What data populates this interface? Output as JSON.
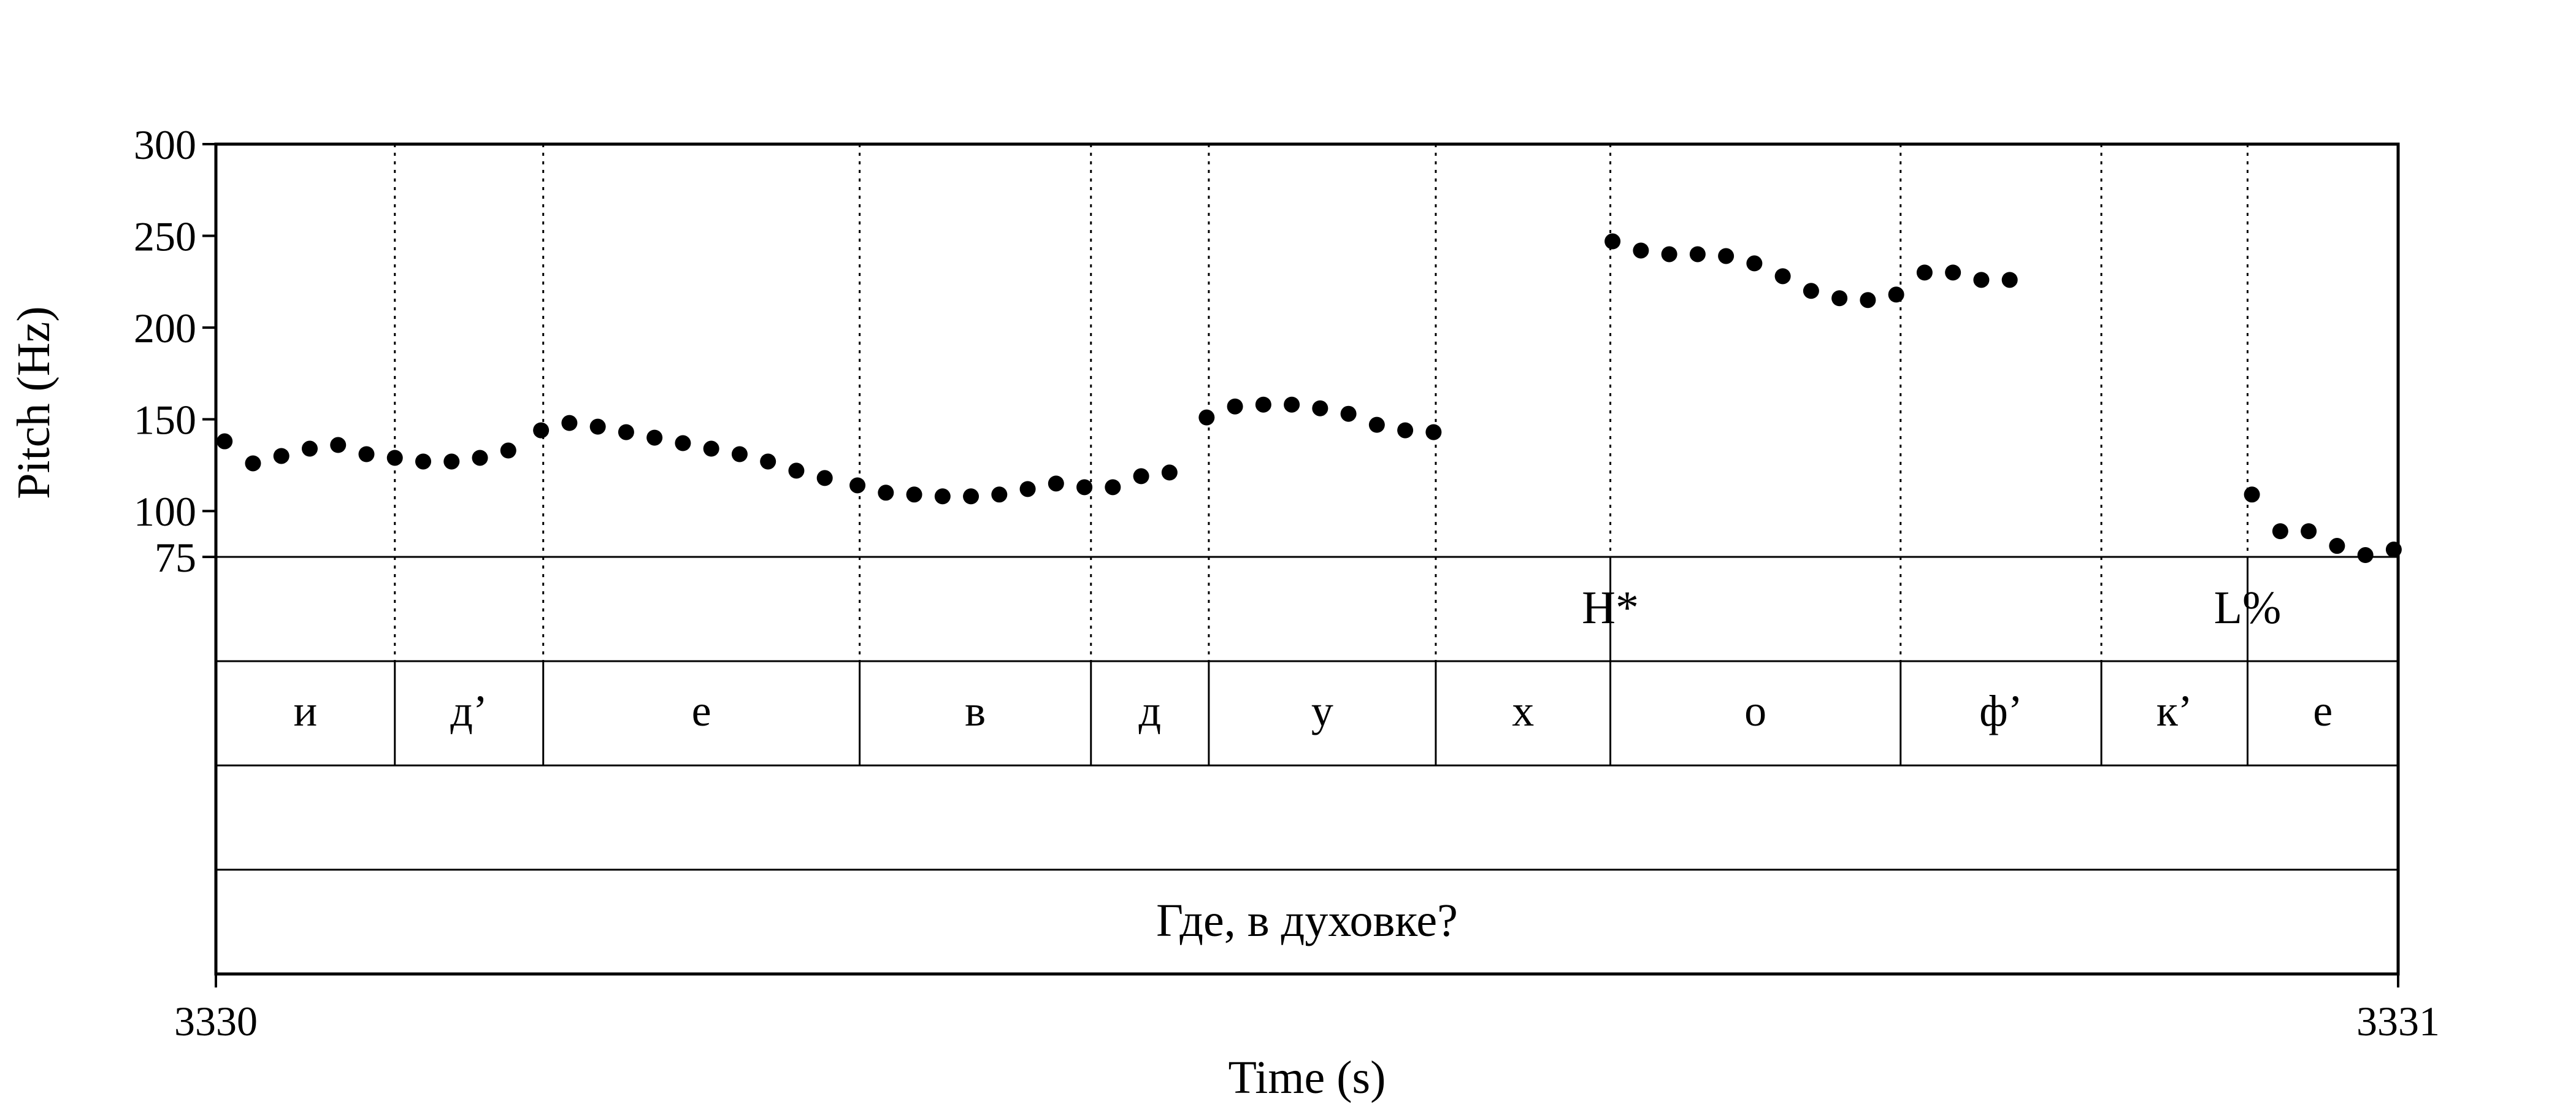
{
  "chart_data": {
    "type": "scatter",
    "xlabel": "Time (s)",
    "ylabel": "Pitch (Hz)",
    "xlim": [
      3330,
      3331
    ],
    "ylim": [
      75,
      300
    ],
    "x_tick_labels": [
      "3330",
      "3331"
    ],
    "y_ticks": [
      75,
      100,
      150,
      200,
      250,
      300
    ],
    "y_tick_labels": [
      "75",
      "100",
      "150",
      "200",
      "250",
      "300"
    ],
    "boundaries": [
      3330.082,
      3330.15,
      3330.295,
      3330.401,
      3330.455,
      3330.559,
      3330.639,
      3330.772,
      3330.864,
      3330.931
    ],
    "tones": [
      {
        "label": "H*",
        "time": 3330.639
      },
      {
        "label": "L%",
        "time": 3330.931
      }
    ],
    "segments": [
      {
        "label": "и",
        "start": 3330.0,
        "end": 3330.082
      },
      {
        "label": "д’",
        "start": 3330.082,
        "end": 3330.15
      },
      {
        "label": "е",
        "start": 3330.15,
        "end": 3330.295
      },
      {
        "label": "в",
        "start": 3330.295,
        "end": 3330.401
      },
      {
        "label": "д",
        "start": 3330.401,
        "end": 3330.455
      },
      {
        "label": "у",
        "start": 3330.455,
        "end": 3330.559
      },
      {
        "label": "х",
        "start": 3330.559,
        "end": 3330.639
      },
      {
        "label": "о",
        "start": 3330.639,
        "end": 3330.772
      },
      {
        "label": "ф’",
        "start": 3330.772,
        "end": 3330.864
      },
      {
        "label": "к’",
        "start": 3330.864,
        "end": 3330.931
      },
      {
        "label": "е",
        "start": 3330.931,
        "end": 3331.0
      }
    ],
    "phrase": "Где, в духовке?",
    "pitch_points": [
      [
        3330.004,
        138
      ],
      [
        3330.017,
        126
      ],
      [
        3330.03,
        130
      ],
      [
        3330.043,
        134
      ],
      [
        3330.056,
        136
      ],
      [
        3330.069,
        131
      ],
      [
        3330.082,
        129
      ],
      [
        3330.095,
        127
      ],
      [
        3330.108,
        127
      ],
      [
        3330.121,
        129
      ],
      [
        3330.134,
        133
      ],
      [
        3330.149,
        144
      ],
      [
        3330.162,
        148
      ],
      [
        3330.175,
        146
      ],
      [
        3330.188,
        143
      ],
      [
        3330.201,
        140
      ],
      [
        3330.214,
        137
      ],
      [
        3330.227,
        134
      ],
      [
        3330.24,
        131
      ],
      [
        3330.253,
        127
      ],
      [
        3330.266,
        122
      ],
      [
        3330.279,
        118
      ],
      [
        3330.294,
        114
      ],
      [
        3330.307,
        110
      ],
      [
        3330.32,
        109
      ],
      [
        3330.333,
        108
      ],
      [
        3330.346,
        108
      ],
      [
        3330.359,
        109
      ],
      [
        3330.372,
        112
      ],
      [
        3330.385,
        115
      ],
      [
        3330.398,
        113
      ],
      [
        3330.411,
        113
      ],
      [
        3330.424,
        119
      ],
      [
        3330.437,
        121
      ],
      [
        3330.454,
        151
      ],
      [
        3330.467,
        157
      ],
      [
        3330.48,
        158
      ],
      [
        3330.493,
        158
      ],
      [
        3330.506,
        156
      ],
      [
        3330.519,
        153
      ],
      [
        3330.532,
        147
      ],
      [
        3330.545,
        144
      ],
      [
        3330.558,
        143
      ],
      [
        3330.64,
        247
      ],
      [
        3330.653,
        242
      ],
      [
        3330.666,
        240
      ],
      [
        3330.679,
        240
      ],
      [
        3330.692,
        239
      ],
      [
        3330.705,
        235
      ],
      [
        3330.718,
        228
      ],
      [
        3330.731,
        220
      ],
      [
        3330.744,
        216
      ],
      [
        3330.757,
        215
      ],
      [
        3330.77,
        218
      ],
      [
        3330.783,
        230
      ],
      [
        3330.796,
        230
      ],
      [
        3330.809,
        226
      ],
      [
        3330.822,
        226
      ],
      [
        3330.933,
        109
      ],
      [
        3330.946,
        89
      ],
      [
        3330.959,
        89
      ],
      [
        3330.972,
        81
      ],
      [
        3330.985,
        76
      ],
      [
        3330.998,
        79
      ]
    ]
  }
}
